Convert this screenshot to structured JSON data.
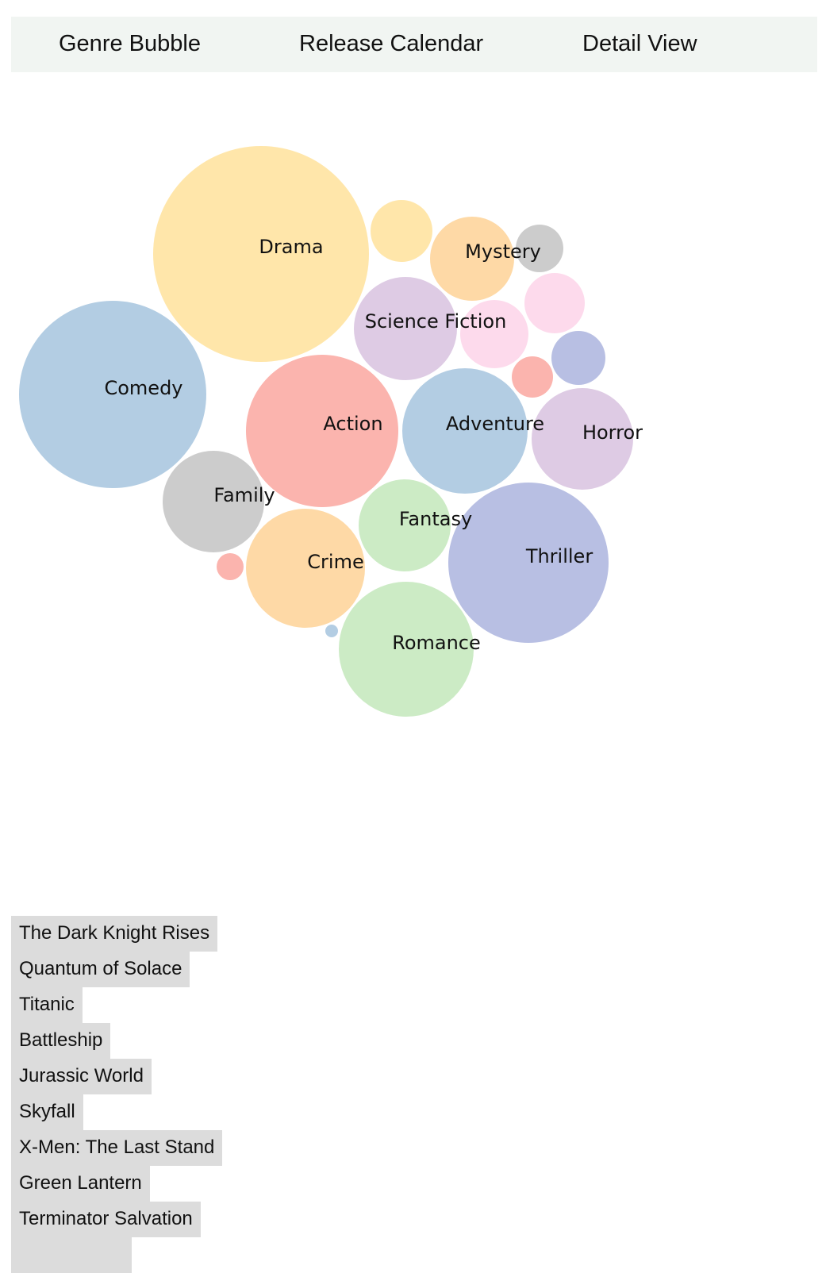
{
  "nav": {
    "items": [
      "Genre Bubble",
      "Release Calendar",
      "Detail View"
    ]
  },
  "colors": {
    "nav_bg": "#f1f5f2",
    "list_item_bg": "#dcdcdc",
    "palette": [
      "#b3cde3",
      "#fbb4ae",
      "#ccebc5",
      "#decbe4",
      "#fed9a6",
      "#ffe6aa",
      "#cccccc",
      "#fddaec",
      "#b8bfe3"
    ]
  },
  "chart_data": {
    "type": "bubble",
    "bubbles": [
      {
        "label": "Drama",
        "color": "#ffe6aa"
      },
      {
        "label": "Comedy",
        "color": "#b3cde3"
      },
      {
        "label": "Action",
        "color": "#fbb4ae"
      },
      {
        "label": "Thriller",
        "color": "#b8bfe3"
      },
      {
        "label": "Romance",
        "color": "#ccebc5"
      },
      {
        "label": "Adventure",
        "color": "#b3cde3"
      },
      {
        "label": "Horror",
        "color": "#decbe4"
      },
      {
        "label": "Crime",
        "color": "#fed9a6"
      },
      {
        "label": "Family",
        "color": "#cccccc"
      },
      {
        "label": "Science Fiction",
        "color": "#decbe4"
      },
      {
        "label": "Fantasy",
        "color": "#ccebc5"
      },
      {
        "label": "Mystery",
        "color": "#fed9a6"
      },
      {
        "label": "",
        "color": "#fddaec"
      },
      {
        "label": "",
        "color": "#ffe6aa"
      },
      {
        "label": "",
        "color": "#fddaec"
      },
      {
        "label": "",
        "color": "#b8bfe3"
      },
      {
        "label": "",
        "color": "#cccccc"
      },
      {
        "label": "",
        "color": "#fbb4ae"
      },
      {
        "label": "",
        "color": "#fbb4ae"
      },
      {
        "label": "",
        "color": "#b3cde3"
      }
    ]
  },
  "movie_list": [
    "The Dark Knight Rises",
    "Quantum of Solace",
    "Titanic",
    "Battleship",
    "Jurassic World",
    "Skyfall",
    "X-Men: The Last Stand",
    "Green Lantern",
    "Terminator Salvation",
    ""
  ]
}
